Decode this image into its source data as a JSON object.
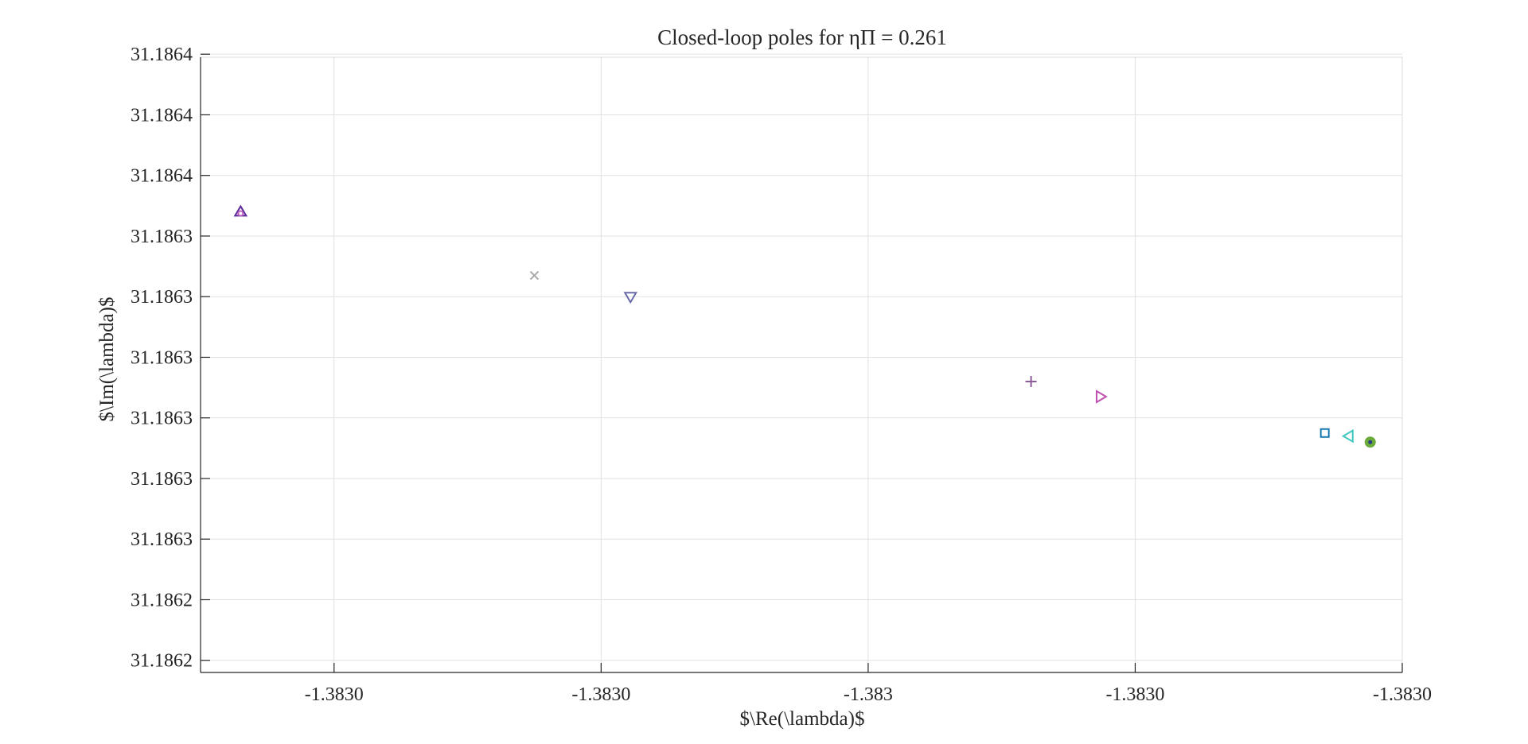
{
  "chart_data": {
    "type": "scatter",
    "title": "Closed-loop poles for ηΠ = 0.261",
    "xlabel": "$\\Re(\\lambda)$",
    "ylabel": "$\\Im(\\lambda)$",
    "xlim": [
      -1.383018,
      -1.382973
    ],
    "ylim": [
      31.186215,
      31.186418
    ],
    "grid": true,
    "legend": "none",
    "x_ticks": [
      {
        "value": -1.383013,
        "label": "-1.3830"
      },
      {
        "value": -1.383003,
        "label": "-1.3830"
      },
      {
        "value": -1.382993,
        "label": "-1.383"
      },
      {
        "value": -1.382983,
        "label": "-1.3830"
      },
      {
        "value": -1.382973,
        "label": "-1.3830"
      }
    ],
    "y_ticks": [
      {
        "value": 31.186219,
        "label": "31.1862"
      },
      {
        "value": 31.186239,
        "label": "31.1862"
      },
      {
        "value": 31.186259,
        "label": "31.1863"
      },
      {
        "value": 31.186279,
        "label": "31.1863"
      },
      {
        "value": 31.186299,
        "label": "31.1863"
      },
      {
        "value": 31.186319,
        "label": "31.1863"
      },
      {
        "value": 31.186339,
        "label": "31.1863"
      },
      {
        "value": 31.186359,
        "label": "31.1863"
      },
      {
        "value": 31.186379,
        "label": "31.1864"
      },
      {
        "value": 31.186399,
        "label": "31.1864"
      },
      {
        "value": 31.186419,
        "label": "31.1864"
      }
    ],
    "points": [
      {
        "x": -1.3830165,
        "y": 31.186367,
        "marker": "triangle-up",
        "color": "#5a2a9a"
      },
      {
        "x": -1.3830165,
        "y": 31.186367,
        "marker": "circle-small",
        "color": "#c060c0"
      },
      {
        "x": -1.3830055,
        "y": 31.186346,
        "marker": "x",
        "color": "#a8a8a8"
      },
      {
        "x": -1.3830019,
        "y": 31.186339,
        "marker": "triangle-down",
        "color": "#6a6aaa"
      },
      {
        "x": -1.3829869,
        "y": 31.186311,
        "marker": "plus",
        "color": "#8a5a9a"
      },
      {
        "x": -1.3829843,
        "y": 31.186306,
        "marker": "triangle-right",
        "color": "#c050b0"
      },
      {
        "x": -1.3829759,
        "y": 31.186294,
        "marker": "square",
        "color": "#1a7ab0"
      },
      {
        "x": -1.382975,
        "y": 31.186293,
        "marker": "triangle-left",
        "color": "#40c8c0"
      },
      {
        "x": -1.3829742,
        "y": 31.186291,
        "marker": "circle-filled",
        "color": "#6aaa3a"
      },
      {
        "x": -1.3829742,
        "y": 31.186291,
        "marker": "dot",
        "color": "#2a3a8a"
      }
    ]
  }
}
